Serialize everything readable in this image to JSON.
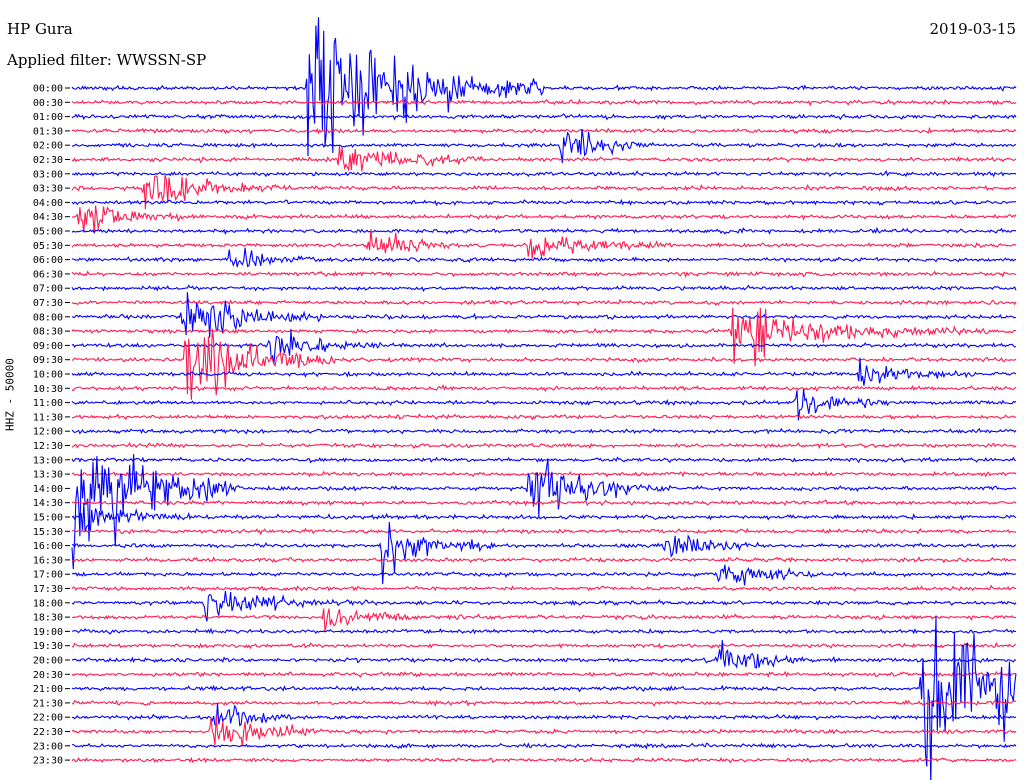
{
  "header": {
    "station": "HP Gura",
    "filter": "Applied filter: WWSSN-SP",
    "date": "2019-03-15"
  },
  "chart_data": {
    "type": "line",
    "title": "HP Gura",
    "subtitle": "Applied filter: WWSSN-SP",
    "date": "2019-03-15",
    "ylabel": "HHZ - 50000",
    "xlabel": "",
    "row_labels": [
      "00:00",
      "00:30",
      "01:00",
      "01:30",
      "02:00",
      "02:30",
      "03:00",
      "03:30",
      "04:00",
      "04:30",
      "05:00",
      "05:30",
      "06:00",
      "06:30",
      "07:00",
      "07:30",
      "08:00",
      "08:30",
      "09:00",
      "09:30",
      "10:00",
      "10:30",
      "11:00",
      "11:30",
      "12:00",
      "12:30",
      "13:00",
      "13:30",
      "14:00",
      "14:30",
      "15:00",
      "15:30",
      "16:00",
      "16:30",
      "17:00",
      "17:30",
      "18:00",
      "18:30",
      "19:00",
      "19:30",
      "20:00",
      "20:30",
      "21:00",
      "21:30",
      "22:00",
      "22:30",
      "23:00",
      "23:30"
    ],
    "trace_colors": [
      "#0000ff",
      "#ff1a50"
    ],
    "trace_duration_minutes": 30,
    "events": [
      {
        "row": 0,
        "minute": 7.5,
        "amplitude": 9.0,
        "duration": 2.5
      },
      {
        "row": 4,
        "minute": 15.5,
        "amplitude": 2.2,
        "duration": 1.0
      },
      {
        "row": 5,
        "minute": 8.5,
        "amplitude": 2.0,
        "duration": 1.5
      },
      {
        "row": 7,
        "minute": 2.3,
        "amplitude": 1.8,
        "duration": 1.6
      },
      {
        "row": 9,
        "minute": 0.2,
        "amplitude": 1.6,
        "duration": 1.2
      },
      {
        "row": 11,
        "minute": 9.4,
        "amplitude": 1.5,
        "duration": 1.2
      },
      {
        "row": 11,
        "minute": 14.5,
        "amplitude": 1.4,
        "duration": 1.6
      },
      {
        "row": 12,
        "minute": 5.0,
        "amplitude": 1.2,
        "duration": 1.0
      },
      {
        "row": 16,
        "minute": 3.5,
        "amplitude": 2.8,
        "duration": 1.5
      },
      {
        "row": 17,
        "minute": 21.0,
        "amplitude": 2.5,
        "duration": 2.5
      },
      {
        "row": 18,
        "minute": 6.2,
        "amplitude": 1.6,
        "duration": 1.2
      },
      {
        "row": 19,
        "minute": 3.6,
        "amplitude": 5.0,
        "duration": 1.6
      },
      {
        "row": 20,
        "minute": 25.0,
        "amplitude": 1.3,
        "duration": 1.2
      },
      {
        "row": 22,
        "minute": 23.0,
        "amplitude": 1.6,
        "duration": 1.0
      },
      {
        "row": 28,
        "minute": 0.0,
        "amplitude": 7.5,
        "duration": 1.8
      },
      {
        "row": 28,
        "minute": 14.5,
        "amplitude": 3.5,
        "duration": 1.5
      },
      {
        "row": 30,
        "minute": 0.3,
        "amplitude": 1.4,
        "duration": 1.2
      },
      {
        "row": 32,
        "minute": 9.8,
        "amplitude": 3.0,
        "duration": 1.2
      },
      {
        "row": 32,
        "minute": 18.8,
        "amplitude": 1.4,
        "duration": 1.0
      },
      {
        "row": 34,
        "minute": 20.5,
        "amplitude": 1.4,
        "duration": 1.2
      },
      {
        "row": 36,
        "minute": 4.2,
        "amplitude": 1.4,
        "duration": 1.6
      },
      {
        "row": 37,
        "minute": 8.0,
        "amplitude": 1.2,
        "duration": 1.0
      },
      {
        "row": 40,
        "minute": 20.5,
        "amplitude": 1.8,
        "duration": 1.0
      },
      {
        "row": 42,
        "minute": 27.0,
        "amplitude": 8.0,
        "duration": 2.5
      },
      {
        "row": 44,
        "minute": 4.5,
        "amplitude": 1.4,
        "duration": 1.0
      },
      {
        "row": 45,
        "minute": 4.4,
        "amplitude": 2.0,
        "duration": 1.2
      }
    ]
  }
}
